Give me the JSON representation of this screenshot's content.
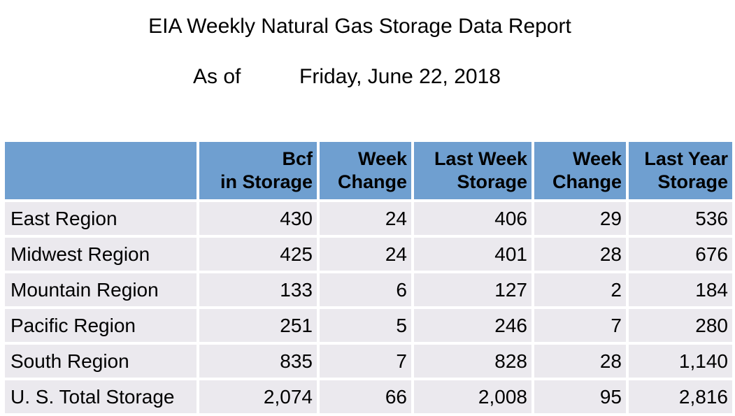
{
  "report": {
    "title": "EIA Weekly Natural Gas Storage Data Report",
    "as_of_label": "As of",
    "as_of_date": "Friday, June 22, 2018"
  },
  "table": {
    "columns": [
      {
        "line1": "Bcf",
        "line2": "in Storage"
      },
      {
        "line1": "Week",
        "line2": "Change"
      },
      {
        "line1": "Last Week",
        "line2": "Storage"
      },
      {
        "line1": "Week",
        "line2": "Change"
      },
      {
        "line1": "Last Year",
        "line2": "Storage"
      }
    ],
    "rows": [
      {
        "region": "East Region",
        "values": [
          "430",
          "24",
          "406",
          "29",
          "536"
        ]
      },
      {
        "region": "Midwest Region",
        "values": [
          "425",
          "24",
          "401",
          "28",
          "676"
        ]
      },
      {
        "region": "Mountain Region",
        "values": [
          "133",
          "6",
          "127",
          "2",
          "184"
        ]
      },
      {
        "region": "Pacific Region",
        "values": [
          "251",
          "5",
          "246",
          "7",
          "280"
        ]
      },
      {
        "region": "South Region",
        "values": [
          "835",
          "7",
          "828",
          "28",
          "1,140"
        ]
      },
      {
        "region": "U. S. Total Storage",
        "values": [
          "2,074",
          "66",
          "2,008",
          "95",
          "2,816"
        ]
      }
    ]
  },
  "colors": {
    "header_fill": "#6f9fd0",
    "row_fill": "#ebe9ee"
  }
}
